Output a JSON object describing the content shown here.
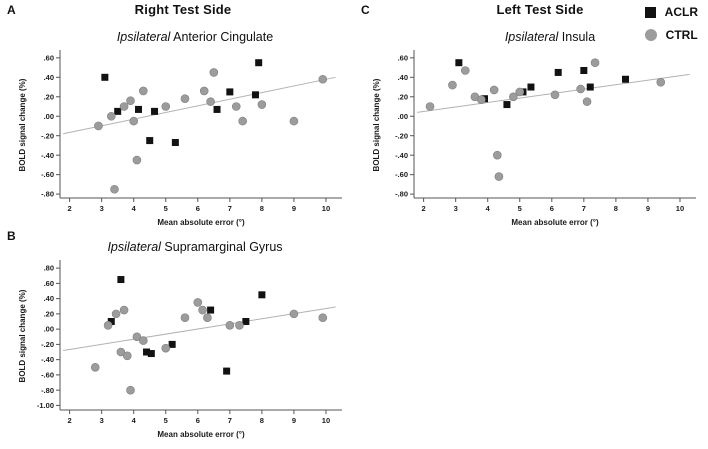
{
  "figure": {
    "panels": {
      "a": {
        "letter": "A",
        "header": "Right Test Side"
      },
      "b": {
        "letter": "B"
      },
      "c": {
        "letter": "C",
        "header": "Left Test Side"
      }
    },
    "legend": {
      "position": "top-right",
      "items": [
        {
          "label": "ACLR",
          "marker": "square",
          "color": "#121212"
        },
        {
          "label": "CTRL",
          "marker": "circle",
          "color": "#9c9c9c"
        }
      ]
    }
  },
  "chart_data": [
    {
      "id": "A",
      "type": "scatter",
      "title_italic": "Ipsilateral",
      "title_rest": " Anterior Cingulate",
      "xlabel": "Mean absolute error (°)",
      "ylabel": "BOLD signal change (%)",
      "xlim": [
        1.7,
        10.5
      ],
      "ylim": [
        -0.84,
        0.66
      ],
      "grid": false,
      "xticks": [
        2,
        3,
        4,
        5,
        6,
        7,
        8,
        9,
        10
      ],
      "xtick_labels": [
        "2",
        "3",
        "4",
        "5",
        "6",
        "7",
        "8",
        "9",
        "10"
      ],
      "yticks": [
        0.6,
        0.4,
        0.2,
        0.0,
        -0.2,
        -0.4,
        -0.6,
        -0.8
      ],
      "ytick_labels": [
        ".60",
        ".40",
        ".20",
        ".00",
        "-.20",
        "-.40",
        "-.60",
        "-.80"
      ],
      "regression_line": {
        "x1": 1.8,
        "y1": -0.18,
        "x2": 10.3,
        "y2": 0.4
      },
      "series": [
        {
          "name": "ACLR",
          "marker": "square",
          "color": "#121212",
          "points": [
            [
              3.1,
              0.4
            ],
            [
              3.5,
              0.05
            ],
            [
              4.15,
              0.07
            ],
            [
              4.5,
              -0.25
            ],
            [
              4.65,
              0.05
            ],
            [
              5.3,
              -0.27
            ],
            [
              6.6,
              0.07
            ],
            [
              7.0,
              0.25
            ],
            [
              7.8,
              0.22
            ],
            [
              7.9,
              0.55
            ]
          ]
        },
        {
          "name": "CTRL",
          "marker": "circle",
          "color": "#9c9c9c",
          "points": [
            [
              2.9,
              -0.1
            ],
            [
              3.3,
              0.0
            ],
            [
              3.4,
              -0.75
            ],
            [
              3.7,
              0.1
            ],
            [
              3.9,
              0.16
            ],
            [
              4.0,
              -0.05
            ],
            [
              4.1,
              -0.45
            ],
            [
              4.3,
              0.26
            ],
            [
              5.0,
              0.1
            ],
            [
              5.6,
              0.18
            ],
            [
              6.2,
              0.26
            ],
            [
              6.4,
              0.15
            ],
            [
              6.5,
              0.45
            ],
            [
              7.2,
              0.1
            ],
            [
              7.4,
              -0.05
            ],
            [
              8.0,
              0.12
            ],
            [
              9.0,
              -0.05
            ],
            [
              9.9,
              0.38
            ]
          ]
        }
      ]
    },
    {
      "id": "B",
      "type": "scatter",
      "title_italic": "Ipsilateral",
      "title_rest": " Supramarginal Gyrus",
      "xlabel": "Mean absolute error (°)",
      "ylabel": "BOLD signal change (%)",
      "xlim": [
        1.7,
        10.5
      ],
      "ylim": [
        -1.06,
        0.88
      ],
      "grid": false,
      "xticks": [
        2,
        3,
        4,
        5,
        6,
        7,
        8,
        9,
        10
      ],
      "xtick_labels": [
        "2",
        "3",
        "4",
        "5",
        "6",
        "7",
        "8",
        "9",
        "10"
      ],
      "yticks": [
        0.8,
        0.6,
        0.4,
        0.2,
        0.0,
        -0.2,
        -0.4,
        -0.6,
        -0.8,
        -1.0
      ],
      "ytick_labels": [
        ".80",
        ".60",
        ".40",
        ".20",
        ".00",
        "-.20",
        "-.40",
        "-.60",
        "-.80",
        "-1.00"
      ],
      "regression_line": {
        "x1": 1.8,
        "y1": -0.28,
        "x2": 10.3,
        "y2": 0.29
      },
      "series": [
        {
          "name": "ACLR",
          "marker": "square",
          "color": "#121212",
          "points": [
            [
              3.3,
              0.1
            ],
            [
              3.6,
              0.65
            ],
            [
              4.4,
              -0.3
            ],
            [
              4.55,
              -0.32
            ],
            [
              5.2,
              -0.2
            ],
            [
              6.4,
              0.25
            ],
            [
              6.9,
              -0.55
            ],
            [
              7.5,
              0.1
            ],
            [
              8.0,
              0.45
            ]
          ]
        },
        {
          "name": "CTRL",
          "marker": "circle",
          "color": "#9c9c9c",
          "points": [
            [
              2.8,
              -0.5
            ],
            [
              3.2,
              0.05
            ],
            [
              3.45,
              0.2
            ],
            [
              3.6,
              -0.3
            ],
            [
              3.7,
              0.25
            ],
            [
              3.8,
              -0.35
            ],
            [
              3.9,
              -0.8
            ],
            [
              4.1,
              -0.1
            ],
            [
              4.3,
              -0.15
            ],
            [
              5.0,
              -0.25
            ],
            [
              5.6,
              0.15
            ],
            [
              6.0,
              0.35
            ],
            [
              6.15,
              0.25
            ],
            [
              6.3,
              0.15
            ],
            [
              7.0,
              0.05
            ],
            [
              7.3,
              0.05
            ],
            [
              9.0,
              0.2
            ],
            [
              9.9,
              0.15
            ]
          ]
        }
      ]
    },
    {
      "id": "C",
      "type": "scatter",
      "title_italic": "Ipsilateral",
      "title_rest": " Insula",
      "xlabel": "Mean absolute error (°)",
      "ylabel": "BOLD signal change (%)",
      "xlim": [
        1.7,
        10.5
      ],
      "ylim": [
        -0.84,
        0.66
      ],
      "grid": false,
      "xticks": [
        2,
        3,
        4,
        5,
        6,
        7,
        8,
        9,
        10
      ],
      "xtick_labels": [
        "2",
        "3",
        "4",
        "5",
        "6",
        "7",
        "8",
        "9",
        "10"
      ],
      "yticks": [
        0.6,
        0.4,
        0.2,
        0.0,
        -0.2,
        -0.4,
        -0.6,
        -0.8
      ],
      "ytick_labels": [
        ".60",
        ".40",
        ".20",
        ".00",
        "-.20",
        "-.40",
        "-.60",
        "-.80"
      ],
      "regression_line": {
        "x1": 1.8,
        "y1": 0.04,
        "x2": 10.3,
        "y2": 0.43
      },
      "series": [
        {
          "name": "ACLR",
          "marker": "square",
          "color": "#121212",
          "points": [
            [
              3.1,
              0.55
            ],
            [
              3.9,
              0.18
            ],
            [
              4.6,
              0.12
            ],
            [
              5.1,
              0.25
            ],
            [
              5.35,
              0.3
            ],
            [
              6.2,
              0.45
            ],
            [
              7.0,
              0.47
            ],
            [
              7.2,
              0.3
            ],
            [
              8.3,
              0.38
            ]
          ]
        },
        {
          "name": "CTRL",
          "marker": "circle",
          "color": "#9c9c9c",
          "points": [
            [
              2.2,
              0.1
            ],
            [
              2.9,
              0.32
            ],
            [
              3.3,
              0.47
            ],
            [
              3.6,
              0.2
            ],
            [
              3.8,
              0.17
            ],
            [
              4.2,
              0.27
            ],
            [
              4.3,
              -0.4
            ],
            [
              4.35,
              -0.62
            ],
            [
              4.8,
              0.2
            ],
            [
              5.0,
              0.25
            ],
            [
              6.1,
              0.22
            ],
            [
              6.9,
              0.28
            ],
            [
              7.1,
              0.15
            ],
            [
              7.35,
              0.55
            ],
            [
              9.4,
              0.35
            ]
          ]
        }
      ]
    }
  ]
}
